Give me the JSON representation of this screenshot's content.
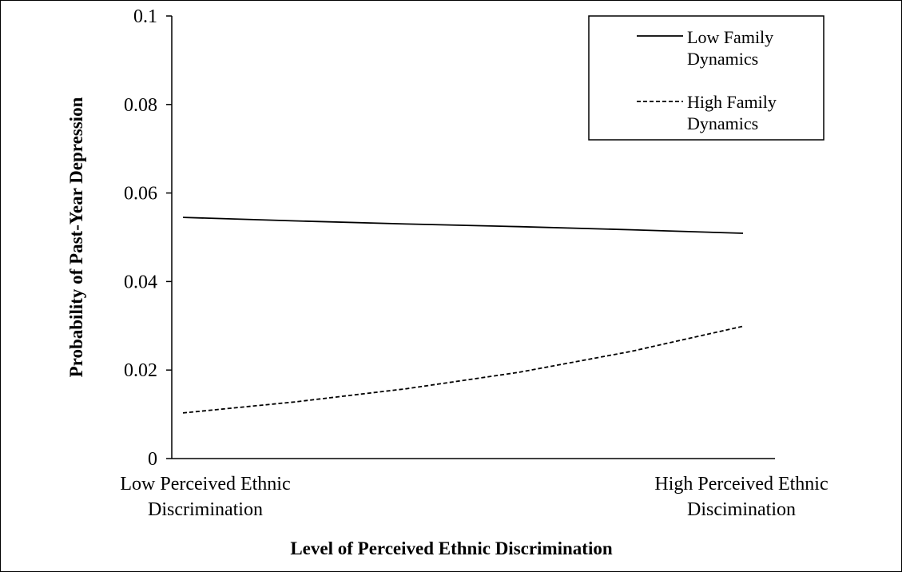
{
  "chart_data": {
    "type": "line",
    "title": "",
    "xlabel": "Level of Perceived Ethnic Discrimination",
    "ylabel": "Probability of Past-Year Depression",
    "ylim": [
      0,
      0.1
    ],
    "yticks": [
      "0",
      "0.02",
      "0.04",
      "0.06",
      "0.08",
      "0.1"
    ],
    "categories": [
      [
        "Low Perceived Ethnic",
        "Discrimination"
      ],
      [
        "High Perceived Ethnic",
        "Discimination"
      ]
    ],
    "x": [
      0,
      0.2,
      0.4,
      0.6,
      0.8,
      1
    ],
    "series": [
      {
        "name": "Low Family Dynamics",
        "legend_lines": [
          "Low Family",
          "Dynamics"
        ],
        "dash": "solid",
        "color": "#000000",
        "values": [
          0.0545,
          0.0537,
          0.053,
          0.0524,
          0.0517,
          0.0509
        ]
      },
      {
        "name": "High Family Dynamics",
        "legend_lines": [
          "High Family",
          "Dynamics"
        ],
        "dash": "dashed",
        "color": "#000000",
        "values": [
          0.0103,
          0.0128,
          0.0158,
          0.0195,
          0.0242,
          0.0299
        ]
      }
    ],
    "legend_position": "top-right",
    "grid": false
  }
}
